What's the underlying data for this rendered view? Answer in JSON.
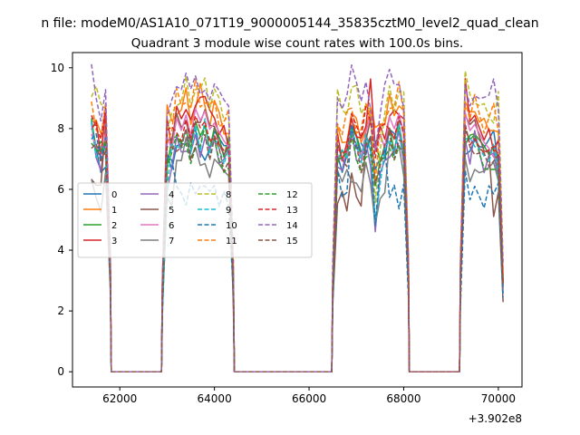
{
  "figure": {
    "suptitle": "n file: modeM0/AS1A10_071T19_9000005144_35835cztM0_level2_quad_clean"
  },
  "chart_data": {
    "type": "line",
    "title": "Quadrant 3 module wise count rates with 100.0s bins.",
    "xlabel": "",
    "ylabel": "",
    "x_offset_label": "+3.902e8",
    "xlim": [
      61000,
      70500
    ],
    "ylim": [
      -0.5,
      10.5
    ],
    "xticks": [
      62000,
      64000,
      66000,
      68000,
      70000
    ],
    "xtick_labels": [
      "62000",
      "64000",
      "66000",
      "68000",
      "70000"
    ],
    "yticks": [
      0,
      2,
      4,
      6,
      8,
      10
    ],
    "ytick_labels": [
      "0",
      "2",
      "4",
      "6",
      "8",
      "10"
    ],
    "grid": false,
    "legend": {
      "placement": "center-left",
      "columns": 4
    },
    "gaps": [
      {
        "start": 61800,
        "end": 62900,
        "level": 0
      },
      {
        "start": 64400,
        "end": 66500,
        "level": 0
      },
      {
        "start": 68100,
        "end": 69200,
        "level": 0
      }
    ],
    "series": [
      {
        "name": "0",
        "color": "#1f77b4",
        "dash": "solid",
        "values": [
          8.1,
          7.5,
          6.9,
          7.0,
          7.9,
          7.0,
          7.3,
          7.0,
          7.7,
          7.5,
          7.2,
          7.5,
          7.8,
          7.4,
          7.3,
          7.6,
          7.9,
          7.4,
          7.1,
          7.3,
          7.8,
          7.0,
          7.3,
          6.9,
          7.4
        ]
      },
      {
        "name": "1",
        "color": "#ff7f0e",
        "dash": "solid",
        "values": [
          8.5,
          8.0,
          7.7,
          8.2,
          8.4,
          7.9,
          8.5,
          8.1,
          8.8,
          8.6,
          9.0,
          8.3,
          8.9,
          9.2,
          8.6,
          8.4,
          8.9,
          8.2,
          8.0,
          8.1,
          8.2,
          7.6,
          7.8,
          7.4,
          7.9
        ]
      },
      {
        "name": "2",
        "color": "#2ca02c",
        "dash": "solid",
        "values": [
          8.0,
          7.6,
          7.3,
          7.5,
          7.6,
          7.3,
          7.1,
          7.4,
          7.9,
          7.5,
          7.8,
          7.6,
          7.9,
          8.1,
          7.8,
          7.5,
          8.0,
          7.6,
          7.3,
          7.4,
          7.1,
          6.9,
          7.2,
          7.0,
          7.2
        ]
      },
      {
        "name": "3",
        "color": "#d62728",
        "dash": "solid",
        "values": [
          8.3,
          7.9,
          7.4,
          8.4,
          9.3,
          7.6,
          8.0,
          7.6,
          8.6,
          8.3,
          8.8,
          8.0,
          9.1,
          8.7,
          9.3,
          8.5,
          8.3,
          8.0,
          7.8,
          7.7,
          7.6,
          7.3,
          7.5,
          7.2,
          7.4
        ]
      },
      {
        "name": "4",
        "color": "#9467bd",
        "dash": "solid",
        "values": [
          7.9,
          7.3,
          6.8,
          7.3,
          7.0,
          4.8,
          6.2,
          6.9,
          7.4,
          7.2,
          7.6,
          7.1,
          7.5,
          7.3,
          7.9,
          7.0,
          7.6,
          7.2,
          6.9,
          7.0,
          6.9,
          6.6,
          7.0,
          6.8,
          7.0
        ]
      },
      {
        "name": "5",
        "color": "#8c564b",
        "dash": "solid",
        "values": [
          6.5,
          6.0,
          5.8,
          7.8,
          8.2,
          7.2,
          7.5,
          7.3,
          8.2,
          8.0,
          8.5,
          7.9,
          8.4,
          8.1,
          8.3,
          7.8,
          8.0,
          7.7,
          7.5,
          7.6,
          5.3,
          5.8,
          5.4,
          5.6,
          5.0
        ]
      },
      {
        "name": "6",
        "color": "#e377c2",
        "dash": "solid",
        "values": [
          7.8,
          7.4,
          7.0,
          7.8,
          8.4,
          7.2,
          7.7,
          7.3,
          8.3,
          7.9,
          8.4,
          7.7,
          8.6,
          8.2,
          8.5,
          7.9,
          8.1,
          7.8,
          7.5,
          7.3,
          7.0,
          6.8,
          7.1,
          6.9,
          7.1
        ]
      },
      {
        "name": "7",
        "color": "#7f7f7f",
        "dash": "solid",
        "values": [
          6.2,
          5.9,
          5.6,
          6.8,
          6.4,
          5.2,
          5.9,
          5.8,
          7.2,
          6.9,
          7.4,
          6.7,
          7.3,
          7.0,
          7.2,
          6.6,
          6.9,
          6.5,
          6.3,
          6.4,
          6.8,
          6.5,
          6.8,
          6.6,
          6.9
        ]
      },
      {
        "name": "8",
        "color": "#bcbd22",
        "dash": "dashed",
        "values": [
          9.3,
          9.1,
          8.7,
          9.0,
          8.3,
          5.5,
          7.6,
          8.4,
          9.1,
          8.8,
          9.4,
          8.9,
          9.5,
          9.0,
          9.6,
          9.0,
          9.2,
          8.7,
          8.5,
          8.6,
          8.4,
          8.9,
          9.0,
          8.5,
          8.8
        ]
      },
      {
        "name": "9",
        "color": "#17becf",
        "dash": "dashed",
        "values": [
          7.9,
          7.4,
          7.1,
          7.5,
          7.6,
          4.6,
          6.4,
          7.2,
          7.6,
          7.3,
          7.9,
          7.4,
          7.8,
          7.6,
          8.0,
          7.4,
          7.6,
          7.3,
          7.0,
          7.1,
          7.2,
          6.9,
          7.3,
          7.0,
          7.2
        ]
      },
      {
        "name": "10",
        "color": "#1f77b4",
        "dash": "dashed",
        "values": [
          8.0,
          7.5,
          7.2,
          7.6,
          7.4,
          5.0,
          6.8,
          7.2,
          6.0,
          5.8,
          5.7,
          5.9,
          6.2,
          5.8,
          6.3,
          5.9,
          6.0,
          5.7,
          5.6,
          5.8,
          6.2,
          5.9,
          6.3,
          6.0,
          5.8
        ]
      },
      {
        "name": "11",
        "color": "#ff7f0e",
        "dash": "dashed",
        "values": [
          8.6,
          8.2,
          7.9,
          8.5,
          8.6,
          6.5,
          7.8,
          8.1,
          9.0,
          8.7,
          9.2,
          8.6,
          9.3,
          8.9,
          9.1,
          8.5,
          8.8,
          8.4,
          8.2,
          8.3,
          8.5,
          8.1,
          8.4,
          8.0,
          8.3
        ]
      },
      {
        "name": "12",
        "color": "#2ca02c",
        "dash": "dashed",
        "values": [
          7.7,
          7.2,
          6.9,
          7.3,
          7.1,
          5.8,
          6.6,
          6.9,
          7.5,
          7.3,
          7.7,
          7.2,
          7.6,
          7.4,
          7.8,
          7.3,
          7.5,
          7.1,
          6.9,
          7.0,
          6.9,
          6.6,
          6.9,
          6.7,
          6.9
        ]
      },
      {
        "name": "13",
        "color": "#d62728",
        "dash": "dashed",
        "values": [
          8.4,
          8.0,
          7.6,
          8.6,
          8.1,
          6.9,
          7.9,
          8.0,
          7.8,
          7.5,
          8.2,
          7.6,
          8.3,
          7.9,
          8.1,
          7.4,
          7.6,
          7.3,
          7.1,
          7.2,
          7.3,
          7.0,
          7.3,
          7.1,
          7.2
        ]
      },
      {
        "name": "14",
        "color": "#9467bd",
        "dash": "dashed",
        "values": [
          10.0,
          9.2,
          8.6,
          9.5,
          8.9,
          7.6,
          8.6,
          9.3,
          9.6,
          9.2,
          9.5,
          9.0,
          9.7,
          9.4,
          9.6,
          9.1,
          9.3,
          8.9,
          8.7,
          8.8,
          9.6,
          8.9,
          9.2,
          9.0,
          9.3
        ]
      },
      {
        "name": "15",
        "color": "#8c564b",
        "dash": "dashed",
        "values": [
          7.6,
          7.2,
          6.8,
          7.6,
          7.4,
          6.2,
          7.1,
          7.3,
          7.6,
          7.3,
          7.7,
          7.2,
          7.6,
          7.4,
          7.8,
          7.3,
          7.5,
          7.1,
          6.9,
          7.0,
          7.1,
          6.8,
          7.2,
          6.9,
          7.1
        ]
      }
    ]
  }
}
